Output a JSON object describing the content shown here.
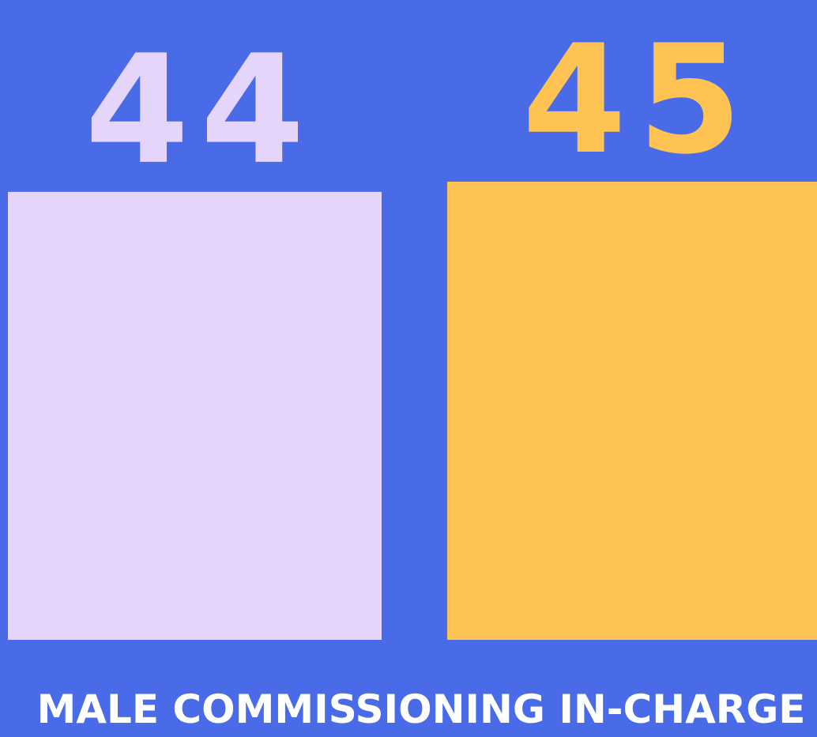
{
  "chart_data": {
    "type": "bar",
    "title": "MALE COMMISSIONING IN-CHARGE",
    "values": [
      44,
      45
    ],
    "colors": [
      "#e6d5fb",
      "#ffc354"
    ]
  }
}
